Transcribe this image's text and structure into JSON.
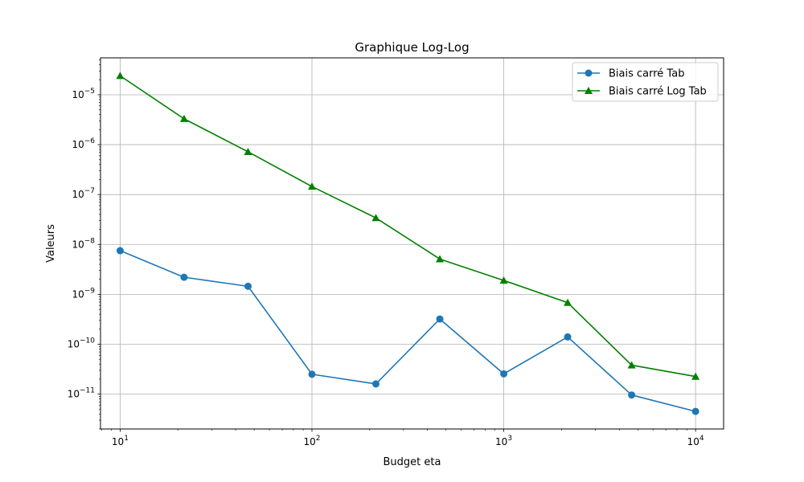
{
  "chart_data": {
    "type": "line",
    "title": "Graphique Log-Log",
    "xlabel": "Budget eta",
    "ylabel": "Valeurs",
    "xscale": "log",
    "yscale": "log",
    "xlim": [
      7.9,
      14000
    ],
    "ylim": [
      2e-12,
      5.5e-05
    ],
    "grid": true,
    "legend_position": "top-right",
    "x": [
      10,
      21.54,
      46.42,
      100,
      215.4,
      464.2,
      1000,
      2154,
      4642,
      10000
    ],
    "x_ticks": [
      {
        "value": 10,
        "base": "10",
        "exp": "1"
      },
      {
        "value": 100,
        "base": "10",
        "exp": "2"
      },
      {
        "value": 1000,
        "base": "10",
        "exp": "3"
      },
      {
        "value": 10000,
        "base": "10",
        "exp": "4"
      }
    ],
    "y_ticks": [
      {
        "value": 1e-05,
        "base": "10",
        "exp": "−5"
      },
      {
        "value": 1e-06,
        "base": "10",
        "exp": "−6"
      },
      {
        "value": 1e-07,
        "base": "10",
        "exp": "−7"
      },
      {
        "value": 1e-08,
        "base": "10",
        "exp": "−8"
      },
      {
        "value": 1e-09,
        "base": "10",
        "exp": "−9"
      },
      {
        "value": 1e-10,
        "base": "10",
        "exp": "−10"
      },
      {
        "value": 1e-11,
        "base": "10",
        "exp": "−11"
      }
    ],
    "series": [
      {
        "name": "Biais carré Tab",
        "color": "#1f77b4",
        "marker": "circle",
        "values": [
          7.5e-09,
          2.2e-09,
          1.45e-09,
          2.5e-11,
          1.6e-11,
          3.2e-10,
          2.55e-11,
          1.4e-10,
          9.6e-12,
          4.5e-12
        ]
      },
      {
        "name": "Biais carré Log Tab",
        "color": "#008000",
        "marker": "triangle",
        "values": [
          2.4e-05,
          3.3e-06,
          7.2e-07,
          1.45e-07,
          3.4e-08,
          5.1e-09,
          1.9e-09,
          6.8e-10,
          3.8e-11,
          2.25e-11
        ]
      }
    ]
  }
}
